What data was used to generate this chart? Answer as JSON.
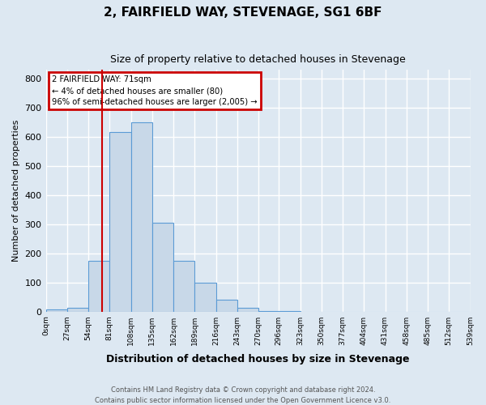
{
  "title1": "2, FAIRFIELD WAY, STEVENAGE, SG1 6BF",
  "title2": "Size of property relative to detached houses in Stevenage",
  "xlabel": "Distribution of detached houses by size in Stevenage",
  "ylabel": "Number of detached properties",
  "bin_edges": [
    0,
    27,
    54,
    81,
    108,
    135,
    162,
    189,
    216,
    243,
    270,
    296,
    323,
    350,
    377,
    404,
    431,
    458,
    485,
    512,
    539
  ],
  "bar_heights": [
    8,
    13,
    175,
    615,
    650,
    305,
    175,
    100,
    42,
    13,
    1,
    1,
    0,
    0,
    0,
    0,
    0,
    0,
    0,
    0
  ],
  "bar_color": "#c8d8e8",
  "bar_edge_color": "#5b9bd5",
  "property_size": 71,
  "vline_color": "#cc0000",
  "annotation_line1": "2 FAIRFIELD WAY: 71sqm",
  "annotation_line2": "← 4% of detached houses are smaller (80)",
  "annotation_line3": "96% of semi-detached houses are larger (2,005) →",
  "annotation_box_color": "#cc0000",
  "ylim": [
    0,
    830
  ],
  "yticks": [
    0,
    100,
    200,
    300,
    400,
    500,
    600,
    700,
    800
  ],
  "tick_labels": [
    "0sqm",
    "27sqm",
    "54sqm",
    "81sqm",
    "108sqm",
    "135sqm",
    "162sqm",
    "189sqm",
    "216sqm",
    "243sqm",
    "270sqm",
    "296sqm",
    "323sqm",
    "350sqm",
    "377sqm",
    "404sqm",
    "431sqm",
    "458sqm",
    "485sqm",
    "512sqm",
    "539sqm"
  ],
  "footnote1": "Contains HM Land Registry data © Crown copyright and database right 2024.",
  "footnote2": "Contains public sector information licensed under the Open Government Licence v3.0.",
  "background_color": "#dde8f2",
  "grid_color": "#ffffff"
}
